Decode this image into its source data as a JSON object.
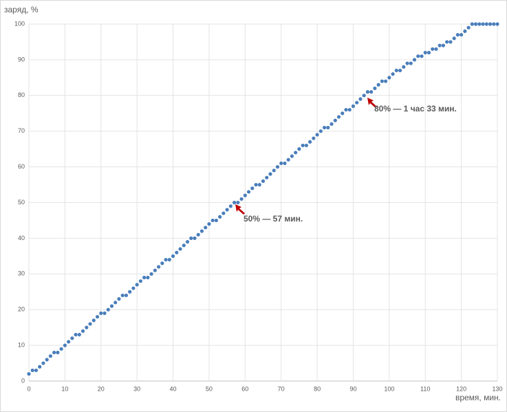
{
  "chart_data": {
    "type": "scatter",
    "y_label": "заряд, %",
    "x_label": "время, мин.",
    "annotations": [
      "80% — 1 час 33 мин.",
      "50% — 57 мин."
    ],
    "series": [
      {
        "color": "#4a7ebb",
        "x": [
          0,
          1,
          2,
          3,
          4,
          5,
          6,
          7,
          8,
          9,
          10,
          11,
          12,
          13,
          14,
          15,
          16,
          17,
          18,
          19,
          20,
          21,
          22,
          23,
          24,
          25,
          26,
          27,
          28,
          29,
          30,
          31,
          32,
          33,
          34,
          35,
          36,
          37,
          38,
          39,
          40,
          41,
          42,
          43,
          44,
          45,
          46,
          47,
          48,
          49,
          50,
          51,
          52,
          53,
          54,
          55,
          56,
          57,
          58,
          59,
          60,
          61,
          62,
          63,
          64,
          65,
          66,
          67,
          68,
          69,
          70,
          71,
          72,
          73,
          74,
          75,
          76,
          77,
          78,
          79,
          80,
          81,
          82,
          83,
          84,
          85,
          86,
          87,
          88,
          89,
          90,
          91,
          92,
          93,
          94,
          95,
          96,
          97,
          98,
          99,
          100,
          101,
          102,
          103,
          104,
          105,
          106,
          107,
          108,
          109,
          110,
          111,
          112,
          113,
          114,
          115,
          116,
          117,
          118,
          119,
          120,
          121,
          122,
          123,
          124,
          125,
          126,
          127,
          128,
          129,
          130
        ],
        "values": [
          2,
          3,
          3,
          4,
          5,
          6,
          7,
          8,
          8,
          9,
          10,
          11,
          12,
          13,
          13,
          14,
          15,
          16,
          17,
          18,
          19,
          19,
          20,
          21,
          22,
          23,
          24,
          24,
          25,
          26,
          27,
          28,
          29,
          29,
          30,
          31,
          32,
          33,
          34,
          34,
          35,
          36,
          37,
          38,
          39,
          40,
          40,
          41,
          42,
          43,
          44,
          45,
          45,
          46,
          47,
          48,
          49,
          50,
          50,
          51,
          52,
          53,
          54,
          55,
          55,
          56,
          57,
          58,
          59,
          60,
          61,
          61,
          62,
          63,
          64,
          65,
          66,
          66,
          67,
          68,
          69,
          70,
          71,
          71,
          72,
          73,
          74,
          75,
          76,
          76,
          77,
          78,
          79,
          80,
          81,
          81,
          82,
          83,
          84,
          84,
          85,
          86,
          87,
          87,
          88,
          89,
          89,
          90,
          91,
          91,
          92,
          92,
          93,
          93,
          94,
          94,
          95,
          95,
          96,
          97,
          97,
          98,
          99,
          100,
          100,
          100,
          100,
          100,
          100,
          100,
          100
        ]
      }
    ],
    "xlim": [
      0,
      130
    ],
    "xticks": [
      0,
      10,
      20,
      30,
      40,
      50,
      60,
      70,
      80,
      90,
      100,
      110,
      120,
      130
    ],
    "ylim": [
      0,
      100
    ],
    "yticks": [
      0,
      10,
      20,
      30,
      40,
      50,
      60,
      70,
      80,
      90,
      100
    ],
    "grid": true
  }
}
